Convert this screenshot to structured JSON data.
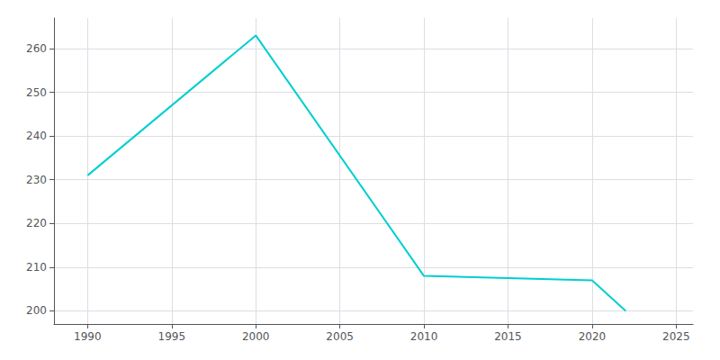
{
  "chart_data": {
    "type": "line",
    "x": [
      1990,
      2000,
      2010,
      2020,
      2022
    ],
    "values": [
      231,
      263,
      208,
      207,
      200
    ],
    "color": "#00CED1",
    "xlim": [
      1988,
      2026
    ],
    "ylim": [
      197,
      267
    ],
    "xticks": [
      1990,
      1995,
      2000,
      2005,
      2010,
      2015,
      2020,
      2025
    ],
    "yticks": [
      200,
      210,
      220,
      230,
      240,
      250,
      260
    ],
    "grid": true
  }
}
